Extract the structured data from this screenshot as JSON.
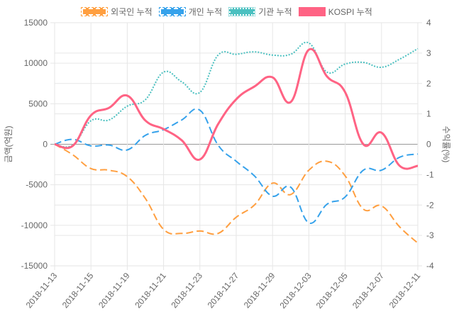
{
  "chart_data": {
    "type": "line",
    "title": "",
    "x": [
      "2018-11-13",
      "2018-11-14",
      "2018-11-15",
      "2018-11-16",
      "2018-11-19",
      "2018-11-20",
      "2018-11-21",
      "2018-11-22",
      "2018-11-23",
      "2018-11-26",
      "2018-11-27",
      "2018-11-28",
      "2018-11-29",
      "2018-11-30",
      "2018-12-03",
      "2018-12-04",
      "2018-12-05",
      "2018-12-06",
      "2018-12-07",
      "2018-12-10",
      "2018-12-11"
    ],
    "x_tick_labels": [
      "2018-11-13",
      "2018-11-15",
      "2018-11-19",
      "2018-11-21",
      "2018-11-23",
      "2018-11-27",
      "2018-11-29",
      "2018-12-03",
      "2018-12-05",
      "2018-12-07",
      "2018-12-11"
    ],
    "ylabel": "금액(억원)",
    "y2label": "수익률(%)",
    "ylim": [
      -15000,
      15000
    ],
    "y2lim": [
      -4,
      4
    ],
    "y_ticks": [
      "15000",
      "10000",
      "5000",
      "0",
      "-5000",
      "-10000",
      "-15000"
    ],
    "y2_ticks": [
      "4",
      "3",
      "2",
      "1",
      "0",
      "-1",
      "-2",
      "-3",
      "-4"
    ],
    "grid": true,
    "legend_position": "top",
    "series": [
      {
        "name": "외국인 누적",
        "axis": "left",
        "style": "dashed",
        "color": "#ff9f40",
        "values": [
          0,
          -1300,
          -3000,
          -3200,
          -4000,
          -6700,
          -10500,
          -11000,
          -10700,
          -11000,
          -9000,
          -7500,
          -4800,
          -6200,
          -3200,
          -2100,
          -3900,
          -8000,
          -7600,
          -10200,
          -12200
        ]
      },
      {
        "name": "개인 누적",
        "axis": "left",
        "style": "dashed",
        "color": "#36a2eb",
        "values": [
          0,
          600,
          -200,
          -100,
          -700,
          1100,
          1800,
          3000,
          4200,
          -100,
          -2100,
          -3900,
          -6400,
          -5300,
          -9700,
          -7400,
          -6500,
          -3200,
          -3200,
          -1600,
          -1200
        ]
      },
      {
        "name": "기관 누적",
        "axis": "left",
        "style": "dotted",
        "color": "#4bc0c0",
        "values": [
          0,
          -100,
          2900,
          3000,
          4700,
          5500,
          8900,
          7700,
          6400,
          11000,
          11100,
          11400,
          11000,
          11100,
          12500,
          8900,
          9900,
          10100,
          9500,
          10500,
          11800
        ]
      },
      {
        "name": "KOSPI 누적",
        "axis": "right",
        "style": "solid",
        "color": "#ff6384",
        "values": [
          0,
          -0.05,
          0.95,
          1.2,
          1.6,
          0.78,
          0.5,
          0.13,
          -0.5,
          0.66,
          1.48,
          1.9,
          2.2,
          1.39,
          3.11,
          2.23,
          1.71,
          0,
          0.38,
          -0.71,
          -0.71
        ]
      }
    ]
  }
}
